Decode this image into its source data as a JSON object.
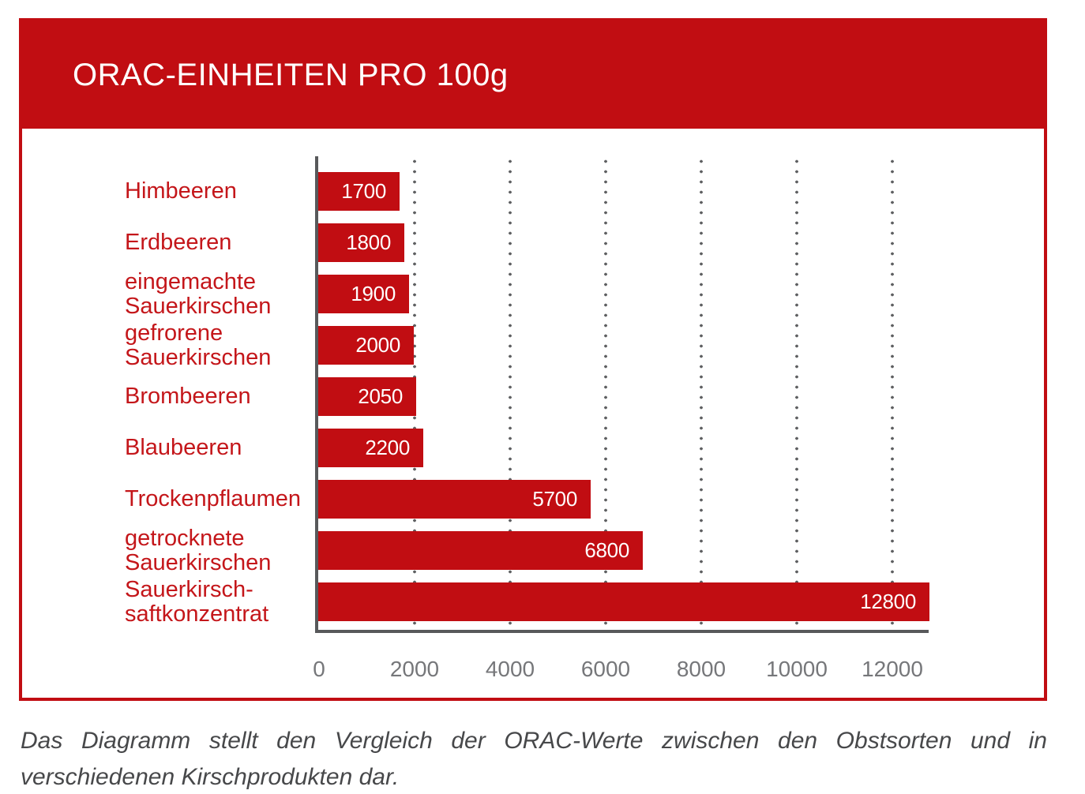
{
  "header": {
    "title": "ORAC-EINHEITEN PRO 100g"
  },
  "colors": {
    "brand_red": "#c10d12",
    "label_red": "#c4161a",
    "axis_gray": "#58595b",
    "dot_gray": "#5f6062",
    "tick_gray": "#76777a",
    "caption_gray": "#47484a",
    "value_text": "#ffffff"
  },
  "chart_data": {
    "type": "bar",
    "orientation": "horizontal",
    "title": "ORAC-EINHEITEN PRO 100g",
    "categories": [
      "Himbeeren",
      "Erdbeeren",
      "eingemachte\nSauerkirschen",
      "gefrorene\nSauerkirschen",
      "Brombeeren",
      "Blaubeeren",
      "Trockenpflaumen",
      "getrocknete\nSauerkirschen",
      "Sauerkirsch-\nsaftkonzentrat"
    ],
    "values": [
      1700,
      1800,
      1900,
      2000,
      2050,
      2200,
      5700,
      6800,
      12800
    ],
    "value_labels": [
      "1700",
      "1800",
      "1900",
      "2000",
      "2050",
      "2200",
      "5700",
      "6800",
      "12800"
    ],
    "x_ticks": [
      0,
      2000,
      4000,
      6000,
      8000,
      10000,
      12000
    ],
    "x_tick_labels": [
      "0",
      "2000",
      "4000",
      "6000",
      "8000",
      "10000",
      "12000"
    ],
    "xlim": [
      0,
      12800
    ],
    "grid": "dotted-vertical",
    "bar_color": "#c10d12",
    "legend_position": "none"
  },
  "caption": {
    "text": "Das Diagramm stellt den Vergleich der ORAC-Werte zwischen den Obstsorten und in verschiedenen Kirschprodukten dar."
  }
}
